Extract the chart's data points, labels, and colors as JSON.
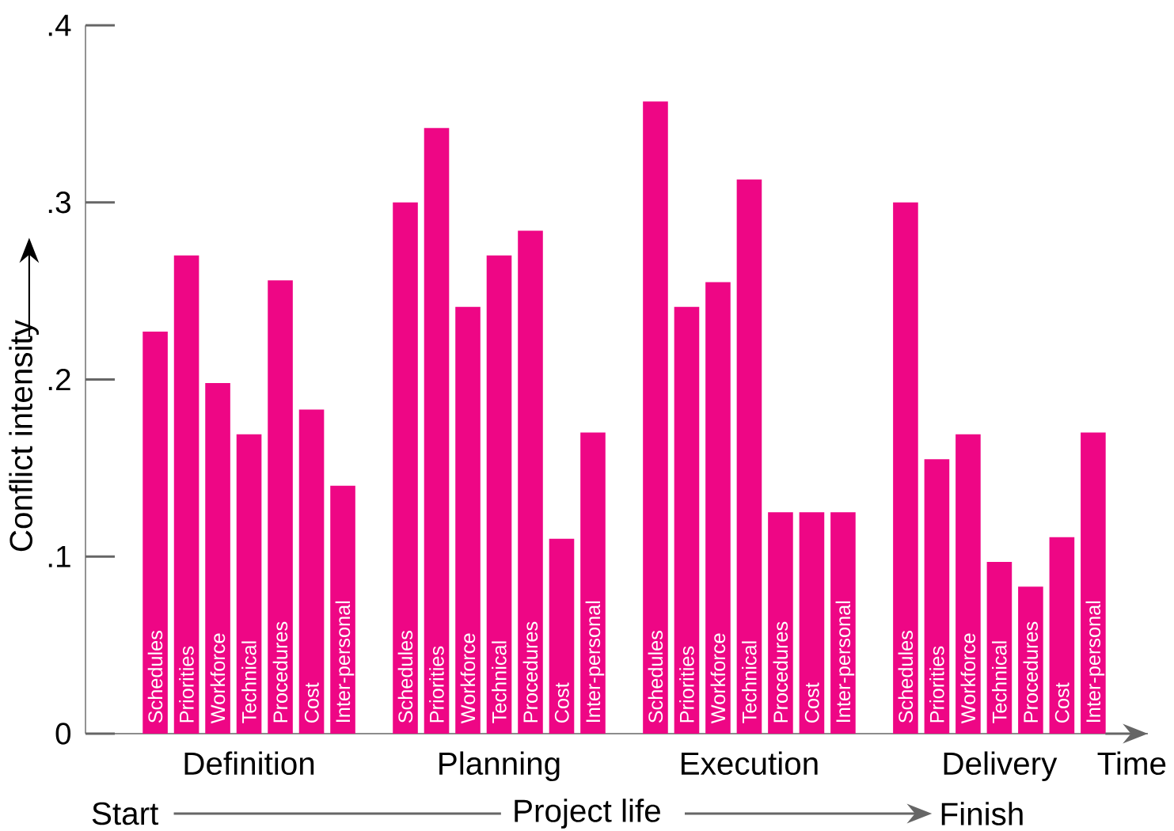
{
  "chart_data": {
    "type": "bar",
    "color": "#ee0685",
    "categories": [
      "Schedules",
      "Priorities",
      "Workforce",
      "Technical",
      "Procedures",
      "Cost",
      "Inter-personal",
      null,
      "Schedules",
      "Priorities",
      "Workforce",
      "Technical",
      "Procedures",
      "Cost",
      "Inter-personal",
      null,
      "Schedules",
      "Priorities",
      "Workforce",
      "Technical",
      "Procedures",
      "Cost",
      "Inter-personal",
      null,
      "Schedules",
      "Priorities",
      "Workforce",
      "Technical",
      "Procedures",
      "Cost",
      "Inter-personal"
    ],
    "values": [
      0.227,
      0.27,
      0.198,
      0.169,
      0.256,
      0.183,
      0.14,
      null,
      0.3,
      0.342,
      0.241,
      0.27,
      0.284,
      0.11,
      0.17,
      null,
      0.357,
      0.241,
      0.255,
      0.313,
      0.125,
      0.125,
      0.125,
      null,
      0.3,
      0.155,
      0.169,
      0.097,
      0.083,
      0.111,
      0.17
    ],
    "ylim": [
      0,
      0.4
    ],
    "yticks": [
      0,
      {
        "value": 0.1,
        "label": ".1"
      },
      {
        "value": 0.2,
        "label": ".2"
      },
      {
        "value": 0.3,
        "label": ".3"
      },
      {
        "value": 0.4,
        "label": ".4"
      }
    ],
    "ylabel": "Conflict intensity",
    "xlabel": "Time",
    "annotations": [
      "Definition",
      "Planning",
      "Execution",
      "Delivery",
      "Start",
      "Project life",
      "Finish"
    ]
  }
}
